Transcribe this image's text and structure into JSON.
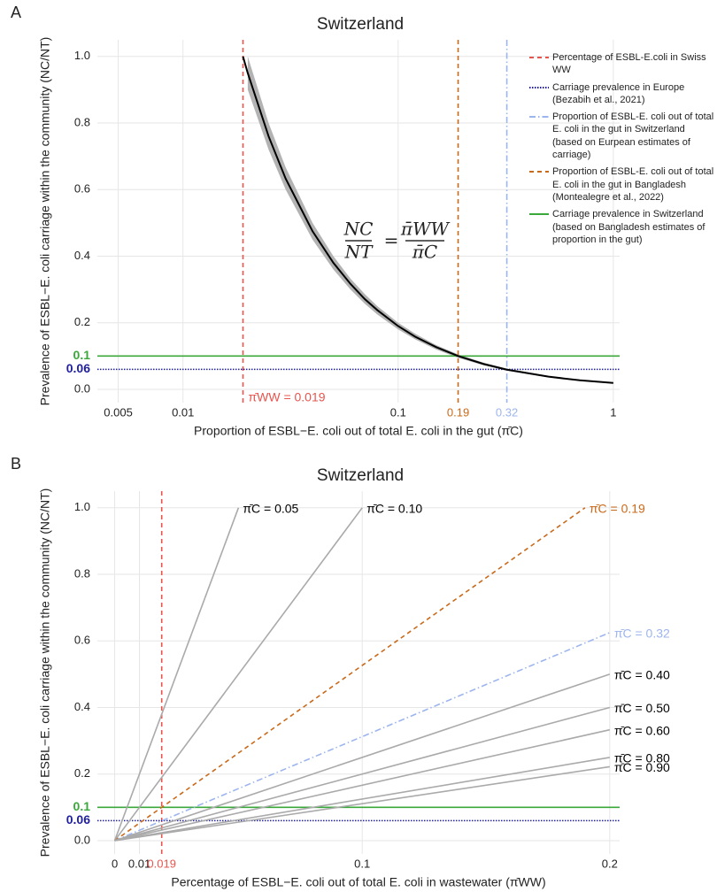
{
  "chart_data": [
    {
      "panel": "A",
      "type": "line",
      "title": "Switzerland",
      "x_label": "Proportion of ESBL−E. coli out of total E. coli in the gut (π̄C)",
      "y_label": "Prevalence of ESBL−E. coli carriage within the community (NC/NT)",
      "x_scale": "log",
      "xlim": [
        0.004,
        1.07
      ],
      "ylim": [
        -0.04,
        1.05
      ],
      "xticks": [
        0.005,
        0.01,
        0.1,
        1
      ],
      "yticks": [
        {
          "value": 0,
          "label": "0.0"
        },
        0.2,
        0.4,
        0.6,
        0.8,
        {
          "value": 1,
          "label": "1.0"
        }
      ],
      "grid": true,
      "legend": "top-right",
      "series": [
        {
          "color": "#000000",
          "x": [
            0.019,
            0.02,
            0.025,
            0.03,
            0.04,
            0.05,
            0.06,
            0.07,
            0.08,
            0.1,
            0.12,
            0.15,
            0.19,
            0.25,
            0.32,
            0.5,
            0.7,
            1
          ],
          "values": [
            1.0,
            0.95,
            0.76,
            0.633,
            0.475,
            0.38,
            0.317,
            0.271,
            0.238,
            0.19,
            0.158,
            0.127,
            0.1,
            0.076,
            0.059,
            0.038,
            0.027,
            0.019
          ]
        }
      ],
      "band": {
        "color": "#b3b3b3",
        "x": [
          0.02,
          0.025,
          0.03,
          0.04,
          0.05,
          0.06,
          0.07,
          0.08,
          0.1,
          0.12,
          0.15,
          0.19,
          0.25,
          0.32,
          0.5,
          0.7,
          1
        ],
        "lower": [
          0.9,
          0.72,
          0.6,
          0.45,
          0.36,
          0.3,
          0.257,
          0.225,
          0.18,
          0.15,
          0.12,
          0.0947,
          0.072,
          0.0563,
          0.036,
          0.0257,
          0.018
        ],
        "upper": [
          1.0,
          0.8,
          0.667,
          0.5,
          0.4,
          0.333,
          0.286,
          0.25,
          0.2,
          0.167,
          0.133,
          0.105,
          0.08,
          0.0625,
          0.04,
          0.0286,
          0.02
        ]
      },
      "reference_lines": [
        {
          "orientation": "vertical",
          "value": 0.019,
          "label": "π̄WW = 0.019",
          "color": "#e8554e",
          "dash": "dashed",
          "legend_text": "Percentage of ESBL-E.coli in Swiss WW"
        },
        {
          "orientation": "horizontal",
          "value": 0.06,
          "label": "0.06",
          "color": "#1f1fa0",
          "dash": "dotted",
          "legend_text": "Carriage prevalence in Europe (Bezabih et al., 2021)"
        },
        {
          "orientation": "vertical",
          "value": 0.32,
          "label": "0.32",
          "color": "#9db5ee",
          "dash": "dashdot",
          "legend_text": "Proportion of ESBL-E. coli out of total E. coli in the gut in Switzerland (based on Eurpean estimates  of carriage)"
        },
        {
          "orientation": "vertical",
          "value": 0.19,
          "label": "0.19",
          "color": "#c96a1b",
          "dash": "dashed",
          "legend_text": "Proportion of ESBL-E. coli out of total E. coli in the gut in Bangladesh (Montealegre et al., 2022)"
        },
        {
          "orientation": "horizontal",
          "value": 0.1,
          "label": "0.1",
          "color": "#3aa83a",
          "dash": "solid",
          "legend_text": "Carriage prevalence in Switzerland (based on Bangladesh estimates of proportion in the gut)"
        }
      ],
      "formula": {
        "lhs_numerator": "NC",
        "lhs_denominator": "NT",
        "operator": "=",
        "rhs_numerator": "π̄WW",
        "rhs_denominator": "π̄C"
      }
    },
    {
      "panel": "B",
      "type": "line",
      "title": "Switzerland",
      "x_label": "Percentage of ESBL−E. coli out of total E. coli in wastewater (π̄WW)",
      "y_label": "Prevalence of ESBL−E. coli carriage within the community (NC/NT)",
      "x_scale": "linear",
      "xlim": [
        -0.007,
        0.204
      ],
      "ylim": [
        -0.04,
        1.05
      ],
      "xticks": [
        0,
        0.01,
        0.1,
        0.2
      ],
      "yticks": [
        {
          "value": 0,
          "label": "0.0"
        },
        0.2,
        0.4,
        0.6,
        0.8,
        {
          "value": 1,
          "label": "1.0"
        }
      ],
      "grid": true,
      "series": [
        {
          "label": "π̄C = 0.05",
          "color": "#aaaaaa",
          "label_color": "#000000",
          "dash": "solid",
          "x": [
            0,
            0.05
          ],
          "values": [
            0,
            1
          ]
        },
        {
          "label": "π̄C = 0.10",
          "color": "#aaaaaa",
          "label_color": "#000000",
          "dash": "solid",
          "x": [
            0,
            0.1
          ],
          "values": [
            0,
            1
          ]
        },
        {
          "label": "π̄C = 0.19",
          "color": "#c96a1b",
          "label_color": "#c96a1b",
          "dash": "dashed",
          "x": [
            0,
            0.19
          ],
          "values": [
            0,
            1
          ]
        },
        {
          "label": "π̄C = 0.32",
          "color": "#9db5ee",
          "label_color": "#9db5ee",
          "dash": "dashdot",
          "x": [
            0,
            0.2
          ],
          "values": [
            0,
            0.625
          ]
        },
        {
          "label": "π̄C = 0.40",
          "color": "#aaaaaa",
          "label_color": "#000000",
          "dash": "solid",
          "x": [
            0,
            0.2
          ],
          "values": [
            0,
            0.5
          ]
        },
        {
          "label": "π̄C = 0.50",
          "color": "#aaaaaa",
          "label_color": "#000000",
          "dash": "solid",
          "x": [
            0,
            0.2
          ],
          "values": [
            0,
            0.4
          ]
        },
        {
          "label": "π̄C = 0.60",
          "color": "#aaaaaa",
          "label_color": "#000000",
          "dash": "solid",
          "x": [
            0,
            0.2
          ],
          "values": [
            0,
            0.333
          ]
        },
        {
          "label": "π̄C = 0.80",
          "color": "#aaaaaa",
          "label_color": "#000000",
          "dash": "solid",
          "x": [
            0,
            0.2
          ],
          "values": [
            0,
            0.25
          ]
        },
        {
          "label": "π̄C = 0.90",
          "color": "#aaaaaa",
          "label_color": "#000000",
          "dash": "solid",
          "x": [
            0,
            0.2
          ],
          "values": [
            0,
            0.222
          ]
        }
      ],
      "reference_lines": [
        {
          "orientation": "vertical",
          "value": 0.019,
          "label": "0.019",
          "color": "#e8554e",
          "dash": "dashed"
        },
        {
          "orientation": "horizontal",
          "value": 0.1,
          "label": "0.1",
          "color": "#3aa83a",
          "dash": "solid"
        },
        {
          "orientation": "horizontal",
          "value": 0.06,
          "label": "0.06",
          "color": "#1f1fa0",
          "dash": "dotted"
        }
      ]
    }
  ]
}
